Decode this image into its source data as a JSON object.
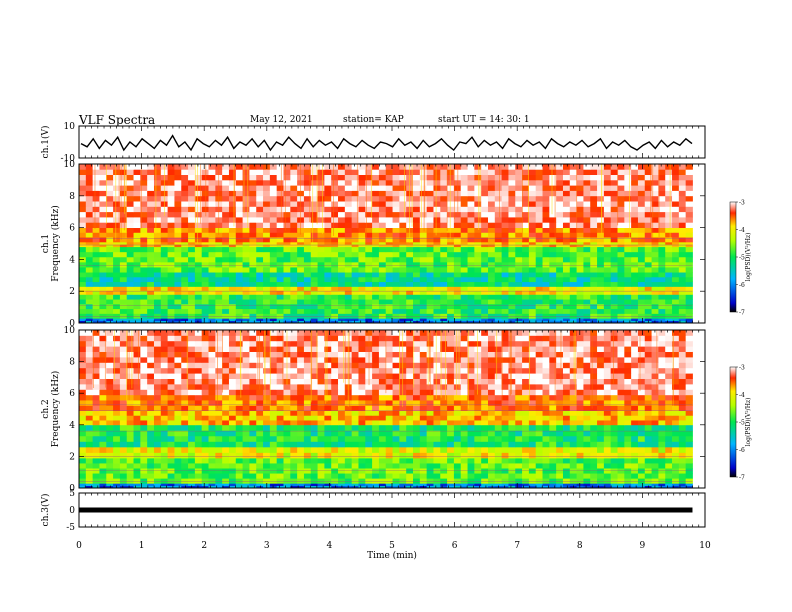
{
  "header": {
    "title": "VLF Spectra",
    "date": "May 12, 2021",
    "station": "station= KAP",
    "start": "start  UT =   14: 30: 1"
  },
  "chart_data": [
    {
      "type": "line",
      "ylabel": "ch.1(V)",
      "ylim": [
        -10,
        10
      ],
      "yticks": [
        "10",
        "-10"
      ],
      "xlim": [
        0,
        10
      ],
      "series": [
        {
          "values": [
            -1,
            -3,
            2,
            -4,
            1,
            -2,
            3,
            -5,
            0,
            -3,
            2,
            -1,
            -4,
            1,
            -2,
            4,
            -3,
            0,
            -5,
            2,
            -1,
            -3,
            1,
            -2,
            3,
            -4,
            0,
            -2,
            2,
            -3,
            1,
            -5,
            0,
            -2,
            3,
            -1,
            -4,
            2,
            -3,
            1,
            -2,
            0,
            -4,
            2,
            -1,
            -3,
            1,
            -2,
            -4,
            0,
            -1,
            -3,
            2,
            -2,
            0,
            -4,
            1,
            -3,
            -1,
            2,
            -2,
            -5,
            0,
            -1,
            3,
            -3,
            1,
            -2,
            0,
            -4,
            2,
            -1,
            -3,
            1,
            -2,
            0,
            -4,
            2,
            -1,
            -3,
            0,
            -2,
            1,
            -3,
            -1,
            2,
            -4,
            0,
            -2,
            1,
            -3,
            -5,
            -2,
            0,
            -4,
            1,
            -3,
            0,
            -2,
            2,
            -1
          ]
        }
      ]
    },
    {
      "type": "heatmap",
      "ylabel": "ch.1 Frequency (kHz)",
      "ylim": [
        0,
        10
      ],
      "yticks": [
        "0",
        "2",
        "4",
        "6",
        "8",
        "10"
      ],
      "xlim": [
        0,
        9.8
      ],
      "colorbar": {
        "label": "log(PSD)(V²/Hz)",
        "ticks": [
          "-3",
          "-4",
          "-5",
          "-6",
          "-7"
        ],
        "range": [
          -7,
          -3
        ]
      },
      "bands": [
        {
          "from": 0,
          "to": 0.3,
          "value": -6.2
        },
        {
          "from": 0.3,
          "to": 1.8,
          "value": -5.2
        },
        {
          "from": 1.8,
          "to": 2.3,
          "value": -4.3
        },
        {
          "from": 2.3,
          "to": 3.2,
          "value": -5.5
        },
        {
          "from": 3.2,
          "to": 4.8,
          "value": -5.0
        },
        {
          "from": 4.8,
          "to": 5.1,
          "value": -4.2
        },
        {
          "from": 5.1,
          "to": 6.0,
          "value": -3.9
        },
        {
          "from": 6.0,
          "to": 10,
          "value": -3.3
        }
      ]
    },
    {
      "type": "heatmap",
      "ylabel": "ch.2 Frequency (kHz)",
      "ylim": [
        0,
        10
      ],
      "yticks": [
        "0",
        "2",
        "4",
        "6",
        "8",
        "10"
      ],
      "xlim": [
        0,
        9.8
      ],
      "colorbar": {
        "label": "log(PSD)(V²/Hz)",
        "ticks": [
          "-3",
          "-4",
          "-5",
          "-6",
          "-7"
        ],
        "range": [
          -7,
          -3
        ]
      },
      "bands": [
        {
          "from": 0,
          "to": 0.3,
          "value": -6.2
        },
        {
          "from": 0.3,
          "to": 1.9,
          "value": -5.0
        },
        {
          "from": 1.9,
          "to": 2.6,
          "value": -4.4
        },
        {
          "from": 2.6,
          "to": 4.0,
          "value": -5.3
        },
        {
          "from": 4.0,
          "to": 4.9,
          "value": -4.1
        },
        {
          "from": 4.9,
          "to": 5.9,
          "value": -3.8
        },
        {
          "from": 5.9,
          "to": 10,
          "value": -3.3
        }
      ]
    },
    {
      "type": "line",
      "ylabel": "ch.3(V)",
      "ylim": [
        -5,
        5
      ],
      "yticks": [
        "5",
        "0",
        "-5"
      ],
      "xlim": [
        0,
        10
      ],
      "xlabel": "Time (min)",
      "xticks": [
        "0",
        "1",
        "2",
        "3",
        "4",
        "5",
        "6",
        "7",
        "8",
        "9",
        "10"
      ],
      "series": [
        {
          "values": [
            0,
            0
          ],
          "x": [
            0,
            9.8
          ]
        }
      ]
    }
  ]
}
